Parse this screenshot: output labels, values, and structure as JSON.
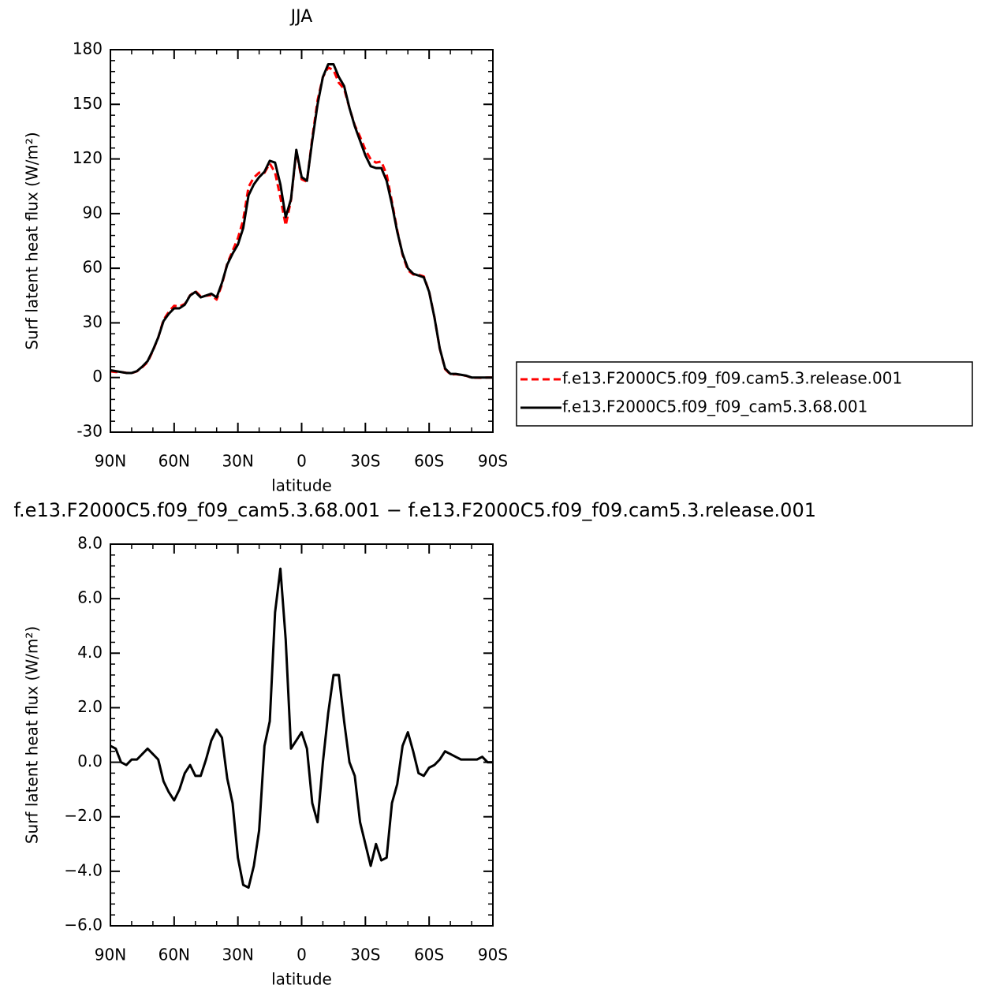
{
  "chart_data": [
    {
      "type": "line",
      "title": "JJA",
      "xlabel": "latitude",
      "ylabel": "Surf latent heat flux (W/m²)",
      "x": [
        90,
        87.5,
        85,
        82.5,
        80,
        77.5,
        75,
        72.5,
        70,
        67.5,
        65,
        62.5,
        60,
        57.5,
        55,
        52.5,
        50,
        47.5,
        45,
        42.5,
        40,
        37.5,
        35,
        32.5,
        30,
        27.5,
        25,
        22.5,
        20,
        17.5,
        15,
        12.5,
        10,
        7.5,
        5,
        2.5,
        0,
        -2.5,
        -5,
        -7.5,
        -10,
        -12.5,
        -15,
        -17.5,
        -20,
        -22.5,
        -25,
        -27.5,
        -30,
        -32.5,
        -35,
        -37.5,
        -40,
        -42.5,
        -45,
        -47.5,
        -50,
        -52.5,
        -55,
        -57.5,
        -60,
        -62.5,
        -65,
        -67.5,
        -70,
        -72.5,
        -75,
        -77.5,
        -80,
        -82.5,
        -85,
        -87.5,
        -90
      ],
      "series": [
        {
          "name": "f.e13.F2000C5.f09_f09.cam5.3.release.001",
          "color": "#ff0000",
          "dash": true,
          "values": [
            3.4,
            3,
            3,
            2.6,
            2.4,
            3.4,
            5.7,
            8.5,
            14.7,
            21.9,
            31.7,
            36.1,
            39.4,
            39,
            40.4,
            45.1,
            47.5,
            44.5,
            44.9,
            45.2,
            42.8,
            51.1,
            62.6,
            69.5,
            76.5,
            86.5,
            104.6,
            109.8,
            112.5,
            112.4,
            117.5,
            112.5,
            98.9,
            83.5,
            97.5,
            124.2,
            108.9,
            107.5,
            131.5,
            152.2,
            165,
            170.2,
            168.8,
            161.8,
            158.5,
            148,
            138.5,
            132.2,
            125,
            119.8,
            118,
            118.6,
            111.5,
            96.5,
            80.8,
            67.4,
            58.9,
            56.6,
            56.4,
            55.5,
            47.2,
            33.1,
            15.9,
            4.6,
            1.7,
            1.8,
            1.4,
            0.9,
            -0.1,
            -0.1,
            -0.2,
            0,
            0
          ]
        },
        {
          "name": "f.e13.F2000C5.f09_f09_cam5.3.68.001",
          "color": "#000000",
          "dash": false,
          "values": [
            4,
            3.5,
            3,
            2.5,
            2.5,
            3.5,
            6,
            9,
            15,
            22,
            31,
            35,
            38,
            38,
            40,
            45,
            47,
            44,
            45,
            46,
            44,
            52,
            62,
            68,
            73,
            82,
            100,
            106,
            110,
            113,
            119,
            118,
            106,
            88,
            98,
            125,
            110,
            108,
            130,
            150,
            165,
            172,
            172,
            165,
            160,
            148,
            138,
            130,
            122,
            116,
            115,
            115,
            108,
            95,
            80,
            68,
            60,
            57,
            56,
            55,
            47,
            33,
            16,
            5,
            2,
            2,
            1.5,
            1,
            0,
            0,
            0,
            0,
            0
          ]
        }
      ],
      "xlim": [
        90,
        -90
      ],
      "ylim": [
        -30,
        180
      ],
      "xticks": [
        {
          "value": 90,
          "label": "90N"
        },
        {
          "value": 60,
          "label": "60N"
        },
        {
          "value": 30,
          "label": "30N"
        },
        0,
        {
          "value": -30,
          "label": "30S"
        },
        {
          "value": -60,
          "label": "60S"
        },
        {
          "value": -90,
          "label": "90S"
        }
      ],
      "yticks": [
        -30,
        0,
        30,
        60,
        90,
        120,
        150,
        180
      ],
      "legend": "right"
    },
    {
      "type": "line",
      "title": "f.e13.F2000C5.f09_f09_cam5.3.68.001 − f.e13.F2000C5.f09_f09.cam5.3.release.001",
      "xlabel": "latitude",
      "ylabel": "Surf latent heat flux (W/m²)",
      "x": [
        90,
        87.5,
        85,
        82.5,
        80,
        77.5,
        75,
        72.5,
        70,
        67.5,
        65,
        62.5,
        60,
        57.5,
        55,
        52.5,
        50,
        47.5,
        45,
        42.5,
        40,
        37.5,
        35,
        32.5,
        30,
        27.5,
        25,
        22.5,
        20,
        17.5,
        15,
        12.5,
        10,
        7.5,
        5,
        2.5,
        0,
        -2.5,
        -5,
        -7.5,
        -10,
        -12.5,
        -15,
        -17.5,
        -20,
        -22.5,
        -25,
        -27.5,
        -30,
        -32.5,
        -35,
        -37.5,
        -40,
        -42.5,
        -45,
        -47.5,
        -50,
        -52.5,
        -55,
        -57.5,
        -60,
        -62.5,
        -65,
        -67.5,
        -70,
        -72.5,
        -75,
        -77.5,
        -80,
        -82.5,
        -85,
        -87.5,
        -90
      ],
      "values": [
        0.6,
        0.5,
        0,
        -0.1,
        0.1,
        0.1,
        0.3,
        0.5,
        0.3,
        0.1,
        -0.7,
        -1.1,
        -1.4,
        -1,
        -0.4,
        -0.1,
        -0.5,
        -0.5,
        0.1,
        0.8,
        1.2,
        0.9,
        -0.6,
        -1.5,
        -3.5,
        -4.5,
        -4.6,
        -3.8,
        -2.5,
        0.6,
        1.5,
        5.5,
        7.1,
        4.5,
        0.5,
        0.8,
        1.1,
        0.5,
        -1.5,
        -2.2,
        0,
        1.8,
        3.2,
        3.2,
        1.5,
        0,
        -0.5,
        -2.2,
        -3,
        -3.8,
        -3,
        -3.6,
        -3.5,
        -1.5,
        -0.8,
        0.6,
        1.1,
        0.4,
        -0.4,
        -0.5,
        -0.2,
        -0.1,
        0.1,
        0.4,
        0.3,
        0.2,
        0.1,
        0.1,
        0.1,
        0.1,
        0.2,
        0,
        0
      ],
      "color": "#000000",
      "xlim": [
        90,
        -90
      ],
      "ylim": [
        -6,
        8
      ],
      "xticks": [
        {
          "value": 90,
          "label": "90N"
        },
        {
          "value": 60,
          "label": "60N"
        },
        {
          "value": 30,
          "label": "30N"
        },
        0,
        {
          "value": -30,
          "label": "30S"
        },
        {
          "value": -60,
          "label": "60S"
        },
        {
          "value": -90,
          "label": "90S"
        }
      ],
      "yticks": [
        {
          "value": -6,
          "label": "−6.0"
        },
        {
          "value": -4,
          "label": "−4.0"
        },
        {
          "value": -2,
          "label": "−2.0"
        },
        {
          "value": 0,
          "label": "0.0"
        },
        {
          "value": 2,
          "label": "2.0"
        },
        {
          "value": 4,
          "label": "4.0"
        },
        {
          "value": 6,
          "label": "6.0"
        },
        {
          "value": 8,
          "label": "8.0"
        }
      ]
    }
  ]
}
